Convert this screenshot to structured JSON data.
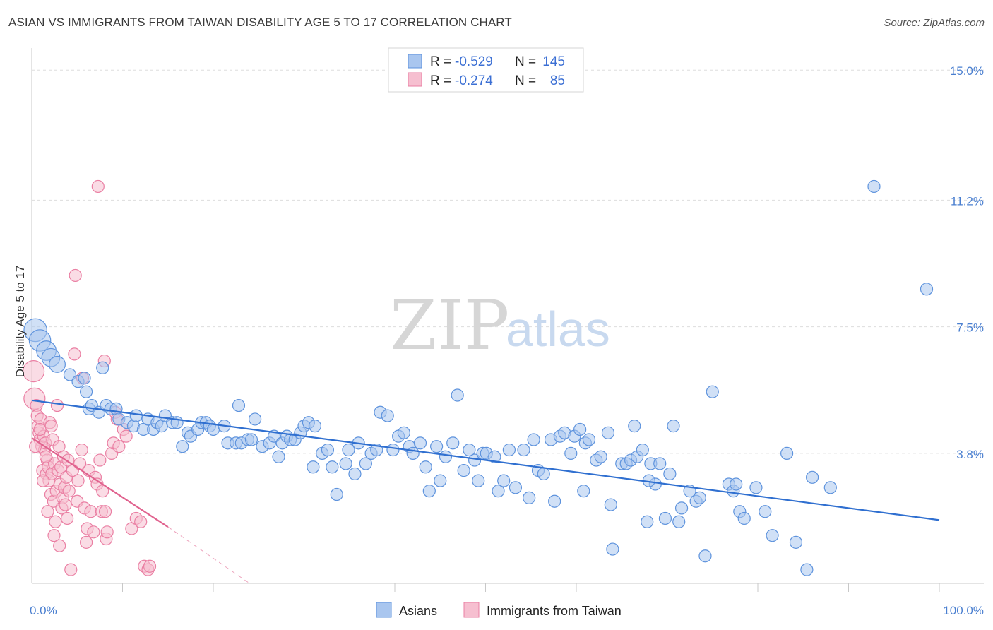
{
  "header": {
    "title": "ASIAN VS IMMIGRANTS FROM TAIWAN DISABILITY AGE 5 TO 17 CORRELATION CHART",
    "source": "Source: ZipAtlas.com"
  },
  "watermark": {
    "part1": "ZIP",
    "part2": "atlas"
  },
  "colors": {
    "asian_fill": "#a9c6ef",
    "asian_stroke": "#5e93dd",
    "asian_line": "#2f6fd0",
    "taiwan_fill": "#f6bfd0",
    "taiwan_stroke": "#ea7fa3",
    "taiwan_line": "#e0628e",
    "grid": "#dddddd",
    "axis_label": "#4a7fd0"
  },
  "legend": {
    "rows": [
      {
        "r_label": "R =",
        "r_value": "-0.529",
        "n_label": "N =",
        "n_value": "145",
        "swatch": "asian"
      },
      {
        "r_label": "R =",
        "r_value": "-0.274",
        "n_label": "N =",
        "n_value": "85",
        "swatch": "taiwan"
      }
    ]
  },
  "chart_data": {
    "type": "scatter",
    "title": "ASIAN VS IMMIGRANTS FROM TAIWAN DISABILITY AGE 5 TO 17 CORRELATION CHART",
    "xlabel": "",
    "ylabel": "Disability Age 5 to 17",
    "xlim": [
      0,
      100
    ],
    "ylim": [
      0,
      15.5
    ],
    "y_ticks": [
      {
        "value": 3.8,
        "label": "3.8%"
      },
      {
        "value": 7.5,
        "label": "7.5%"
      },
      {
        "value": 11.2,
        "label": "11.2%"
      },
      {
        "value": 15.0,
        "label": "15.0%"
      }
    ],
    "x_tick_labels": {
      "min": "0.0%",
      "max": "100.0%"
    },
    "x_minor_ticks": [
      10,
      20,
      30,
      40,
      50,
      60,
      70,
      80,
      90,
      100
    ],
    "series": [
      {
        "name": "Asians",
        "color_key": "asian",
        "trend": {
          "x0": 0,
          "y0": 5.35,
          "x1": 100,
          "y1": 1.85,
          "dashed_to": null
        },
        "points": [
          [
            0.4,
            7.4
          ],
          [
            0.9,
            7.1
          ],
          [
            1.6,
            6.8
          ],
          [
            2.1,
            6.6
          ],
          [
            2.8,
            6.4
          ],
          [
            4.2,
            6.1
          ],
          [
            5.1,
            5.9
          ],
          [
            5.8,
            6.0
          ],
          [
            6.0,
            5.6
          ],
          [
            7.8,
            6.3
          ],
          [
            6.3,
            5.1
          ],
          [
            6.6,
            5.2
          ],
          [
            7.4,
            5.0
          ],
          [
            8.2,
            5.2
          ],
          [
            8.7,
            5.1
          ],
          [
            9.3,
            5.1
          ],
          [
            9.6,
            4.8
          ],
          [
            10.5,
            4.7
          ],
          [
            11.2,
            4.6
          ],
          [
            11.5,
            4.9
          ],
          [
            12.3,
            4.5
          ],
          [
            12.8,
            4.8
          ],
          [
            13.4,
            4.5
          ],
          [
            13.8,
            4.7
          ],
          [
            14.3,
            4.6
          ],
          [
            14.7,
            4.9
          ],
          [
            15.5,
            4.7
          ],
          [
            16.0,
            4.7
          ],
          [
            16.6,
            4.0
          ],
          [
            17.2,
            4.4
          ],
          [
            17.5,
            4.3
          ],
          [
            18.3,
            4.5
          ],
          [
            18.7,
            4.7
          ],
          [
            19.2,
            4.7
          ],
          [
            19.6,
            4.6
          ],
          [
            20.0,
            4.5
          ],
          [
            21.2,
            4.6
          ],
          [
            21.6,
            4.1
          ],
          [
            22.5,
            4.1
          ],
          [
            23.1,
            4.1
          ],
          [
            22.8,
            5.2
          ],
          [
            23.8,
            4.2
          ],
          [
            24.2,
            4.2
          ],
          [
            24.6,
            4.8
          ],
          [
            25.4,
            4.0
          ],
          [
            26.2,
            4.1
          ],
          [
            26.7,
            4.3
          ],
          [
            27.2,
            3.7
          ],
          [
            27.6,
            4.1
          ],
          [
            28.1,
            4.3
          ],
          [
            28.5,
            4.2
          ],
          [
            29.0,
            4.2
          ],
          [
            29.6,
            4.4
          ],
          [
            30.0,
            4.6
          ],
          [
            30.5,
            4.7
          ],
          [
            31.2,
            4.6
          ],
          [
            31.0,
            3.4
          ],
          [
            32.0,
            3.8
          ],
          [
            32.6,
            3.9
          ],
          [
            33.1,
            3.4
          ],
          [
            33.6,
            2.6
          ],
          [
            34.6,
            3.5
          ],
          [
            34.9,
            3.9
          ],
          [
            35.6,
            3.2
          ],
          [
            36.0,
            4.1
          ],
          [
            36.8,
            3.5
          ],
          [
            37.4,
            3.8
          ],
          [
            38.0,
            3.9
          ],
          [
            38.4,
            5.0
          ],
          [
            39.2,
            4.9
          ],
          [
            39.8,
            3.9
          ],
          [
            40.4,
            4.3
          ],
          [
            41.0,
            4.4
          ],
          [
            41.6,
            4.0
          ],
          [
            42.0,
            3.8
          ],
          [
            42.8,
            4.1
          ],
          [
            43.4,
            3.4
          ],
          [
            43.8,
            2.7
          ],
          [
            44.6,
            4.0
          ],
          [
            45.0,
            3.0
          ],
          [
            45.6,
            3.7
          ],
          [
            46.4,
            4.1
          ],
          [
            46.9,
            5.5
          ],
          [
            47.6,
            3.3
          ],
          [
            48.2,
            3.9
          ],
          [
            48.8,
            3.6
          ],
          [
            49.2,
            3.0
          ],
          [
            49.7,
            3.8
          ],
          [
            50.1,
            3.8
          ],
          [
            51.0,
            3.7
          ],
          [
            51.4,
            2.7
          ],
          [
            52.0,
            3.0
          ],
          [
            52.6,
            3.9
          ],
          [
            53.3,
            2.8
          ],
          [
            54.2,
            3.9
          ],
          [
            54.8,
            2.5
          ],
          [
            55.3,
            4.2
          ],
          [
            55.8,
            3.3
          ],
          [
            56.4,
            3.2
          ],
          [
            57.2,
            4.2
          ],
          [
            57.6,
            2.4
          ],
          [
            58.2,
            4.3
          ],
          [
            58.7,
            4.4
          ],
          [
            59.4,
            3.8
          ],
          [
            59.8,
            4.3
          ],
          [
            60.4,
            4.5
          ],
          [
            60.8,
            2.7
          ],
          [
            61.0,
            4.1
          ],
          [
            61.4,
            4.2
          ],
          [
            62.2,
            3.6
          ],
          [
            62.7,
            3.7
          ],
          [
            63.5,
            4.4
          ],
          [
            63.8,
            2.3
          ],
          [
            64.0,
            1.0
          ],
          [
            65.0,
            3.5
          ],
          [
            65.5,
            3.5
          ],
          [
            66.0,
            3.6
          ],
          [
            66.4,
            4.6
          ],
          [
            66.7,
            3.7
          ],
          [
            67.3,
            3.9
          ],
          [
            67.8,
            1.8
          ],
          [
            68.2,
            3.5
          ],
          [
            68.7,
            2.9
          ],
          [
            69.2,
            3.5
          ],
          [
            69.8,
            1.9
          ],
          [
            70.3,
            3.2
          ],
          [
            70.7,
            4.6
          ],
          [
            71.3,
            1.8
          ],
          [
            71.6,
            2.2
          ],
          [
            72.5,
            2.7
          ],
          [
            73.2,
            2.4
          ],
          [
            73.6,
            2.5
          ],
          [
            74.2,
            0.8
          ],
          [
            75.0,
            5.6
          ],
          [
            76.8,
            2.9
          ],
          [
            77.3,
            2.7
          ],
          [
            77.6,
            2.9
          ],
          [
            78.0,
            2.1
          ],
          [
            78.5,
            1.9
          ],
          [
            79.8,
            2.8
          ],
          [
            80.8,
            2.1
          ],
          [
            81.6,
            1.4
          ],
          [
            83.2,
            3.8
          ],
          [
            84.2,
            1.2
          ],
          [
            85.4,
            0.4
          ],
          [
            92.8,
            11.6
          ],
          [
            98.6,
            8.6
          ],
          [
            88.0,
            2.8
          ],
          [
            86.0,
            3.1
          ],
          [
            68.0,
            3.0
          ]
        ]
      },
      {
        "name": "Immigrants from Taiwan",
        "color_key": "taiwan",
        "trend": {
          "x0": 0,
          "y0": 4.25,
          "x1": 15.0,
          "y1": 1.65,
          "dashed_to": {
            "x": 24.0,
            "y": 0.0
          }
        },
        "points": [
          [
            0.2,
            6.2
          ],
          [
            0.3,
            5.4
          ],
          [
            0.5,
            5.2
          ],
          [
            0.6,
            4.9
          ],
          [
            0.7,
            4.6
          ],
          [
            0.8,
            4.4
          ],
          [
            0.9,
            4.2
          ],
          [
            1.0,
            4.8
          ],
          [
            1.1,
            4.0
          ],
          [
            1.2,
            3.3
          ],
          [
            1.3,
            4.3
          ],
          [
            1.4,
            3.9
          ],
          [
            1.5,
            4.1
          ],
          [
            1.6,
            3.2
          ],
          [
            1.7,
            3.6
          ],
          [
            1.8,
            3.4
          ],
          [
            1.9,
            3.0
          ],
          [
            2.0,
            4.7
          ],
          [
            2.1,
            2.6
          ],
          [
            2.2,
            3.2
          ],
          [
            2.3,
            4.2
          ],
          [
            2.4,
            2.4
          ],
          [
            2.5,
            3.5
          ],
          [
            2.6,
            1.8
          ],
          [
            2.7,
            2.7
          ],
          [
            2.8,
            5.2
          ],
          [
            2.9,
            3.3
          ],
          [
            3.0,
            4.0
          ],
          [
            3.1,
            2.9
          ],
          [
            3.2,
            3.4
          ],
          [
            3.3,
            2.2
          ],
          [
            3.4,
            2.5
          ],
          [
            3.5,
            3.7
          ],
          [
            3.6,
            2.8
          ],
          [
            3.7,
            2.3
          ],
          [
            3.8,
            3.1
          ],
          [
            3.9,
            1.9
          ],
          [
            4.0,
            3.6
          ],
          [
            4.1,
            2.7
          ],
          [
            4.3,
            0.4
          ],
          [
            4.5,
            3.3
          ],
          [
            4.7,
            6.7
          ],
          [
            4.8,
            9.0
          ],
          [
            5.0,
            2.4
          ],
          [
            5.1,
            3.0
          ],
          [
            5.3,
            3.5
          ],
          [
            5.5,
            3.9
          ],
          [
            5.6,
            6.0
          ],
          [
            5.8,
            2.2
          ],
          [
            6.0,
            1.2
          ],
          [
            6.1,
            1.6
          ],
          [
            6.3,
            3.3
          ],
          [
            6.5,
            2.1
          ],
          [
            6.8,
            1.5
          ],
          [
            7.0,
            3.1
          ],
          [
            7.2,
            2.9
          ],
          [
            7.3,
            11.6
          ],
          [
            7.5,
            3.6
          ],
          [
            7.7,
            2.1
          ],
          [
            7.8,
            2.7
          ],
          [
            8.0,
            6.5
          ],
          [
            8.1,
            2.1
          ],
          [
            8.2,
            1.3
          ],
          [
            8.3,
            1.5
          ],
          [
            8.8,
            3.8
          ],
          [
            9.0,
            4.1
          ],
          [
            9.2,
            5.0
          ],
          [
            9.4,
            4.8
          ],
          [
            9.6,
            4.0
          ],
          [
            10.1,
            4.5
          ],
          [
            10.4,
            4.3
          ],
          [
            11.0,
            1.6
          ],
          [
            11.5,
            1.9
          ],
          [
            12.0,
            1.8
          ],
          [
            12.4,
            0.5
          ],
          [
            12.8,
            0.4
          ],
          [
            1.25,
            3.0
          ],
          [
            1.75,
            2.1
          ],
          [
            2.45,
            1.4
          ],
          [
            3.05,
            1.1
          ],
          [
            0.4,
            4.0
          ],
          [
            0.9,
            4.5
          ],
          [
            1.55,
            3.7
          ],
          [
            2.15,
            4.6
          ],
          [
            13.0,
            0.5
          ]
        ]
      }
    ]
  },
  "bottom_legend": {
    "items": [
      {
        "label": "Asians",
        "swatch": "asian"
      },
      {
        "label": "Immigrants from Taiwan",
        "swatch": "taiwan"
      }
    ]
  }
}
